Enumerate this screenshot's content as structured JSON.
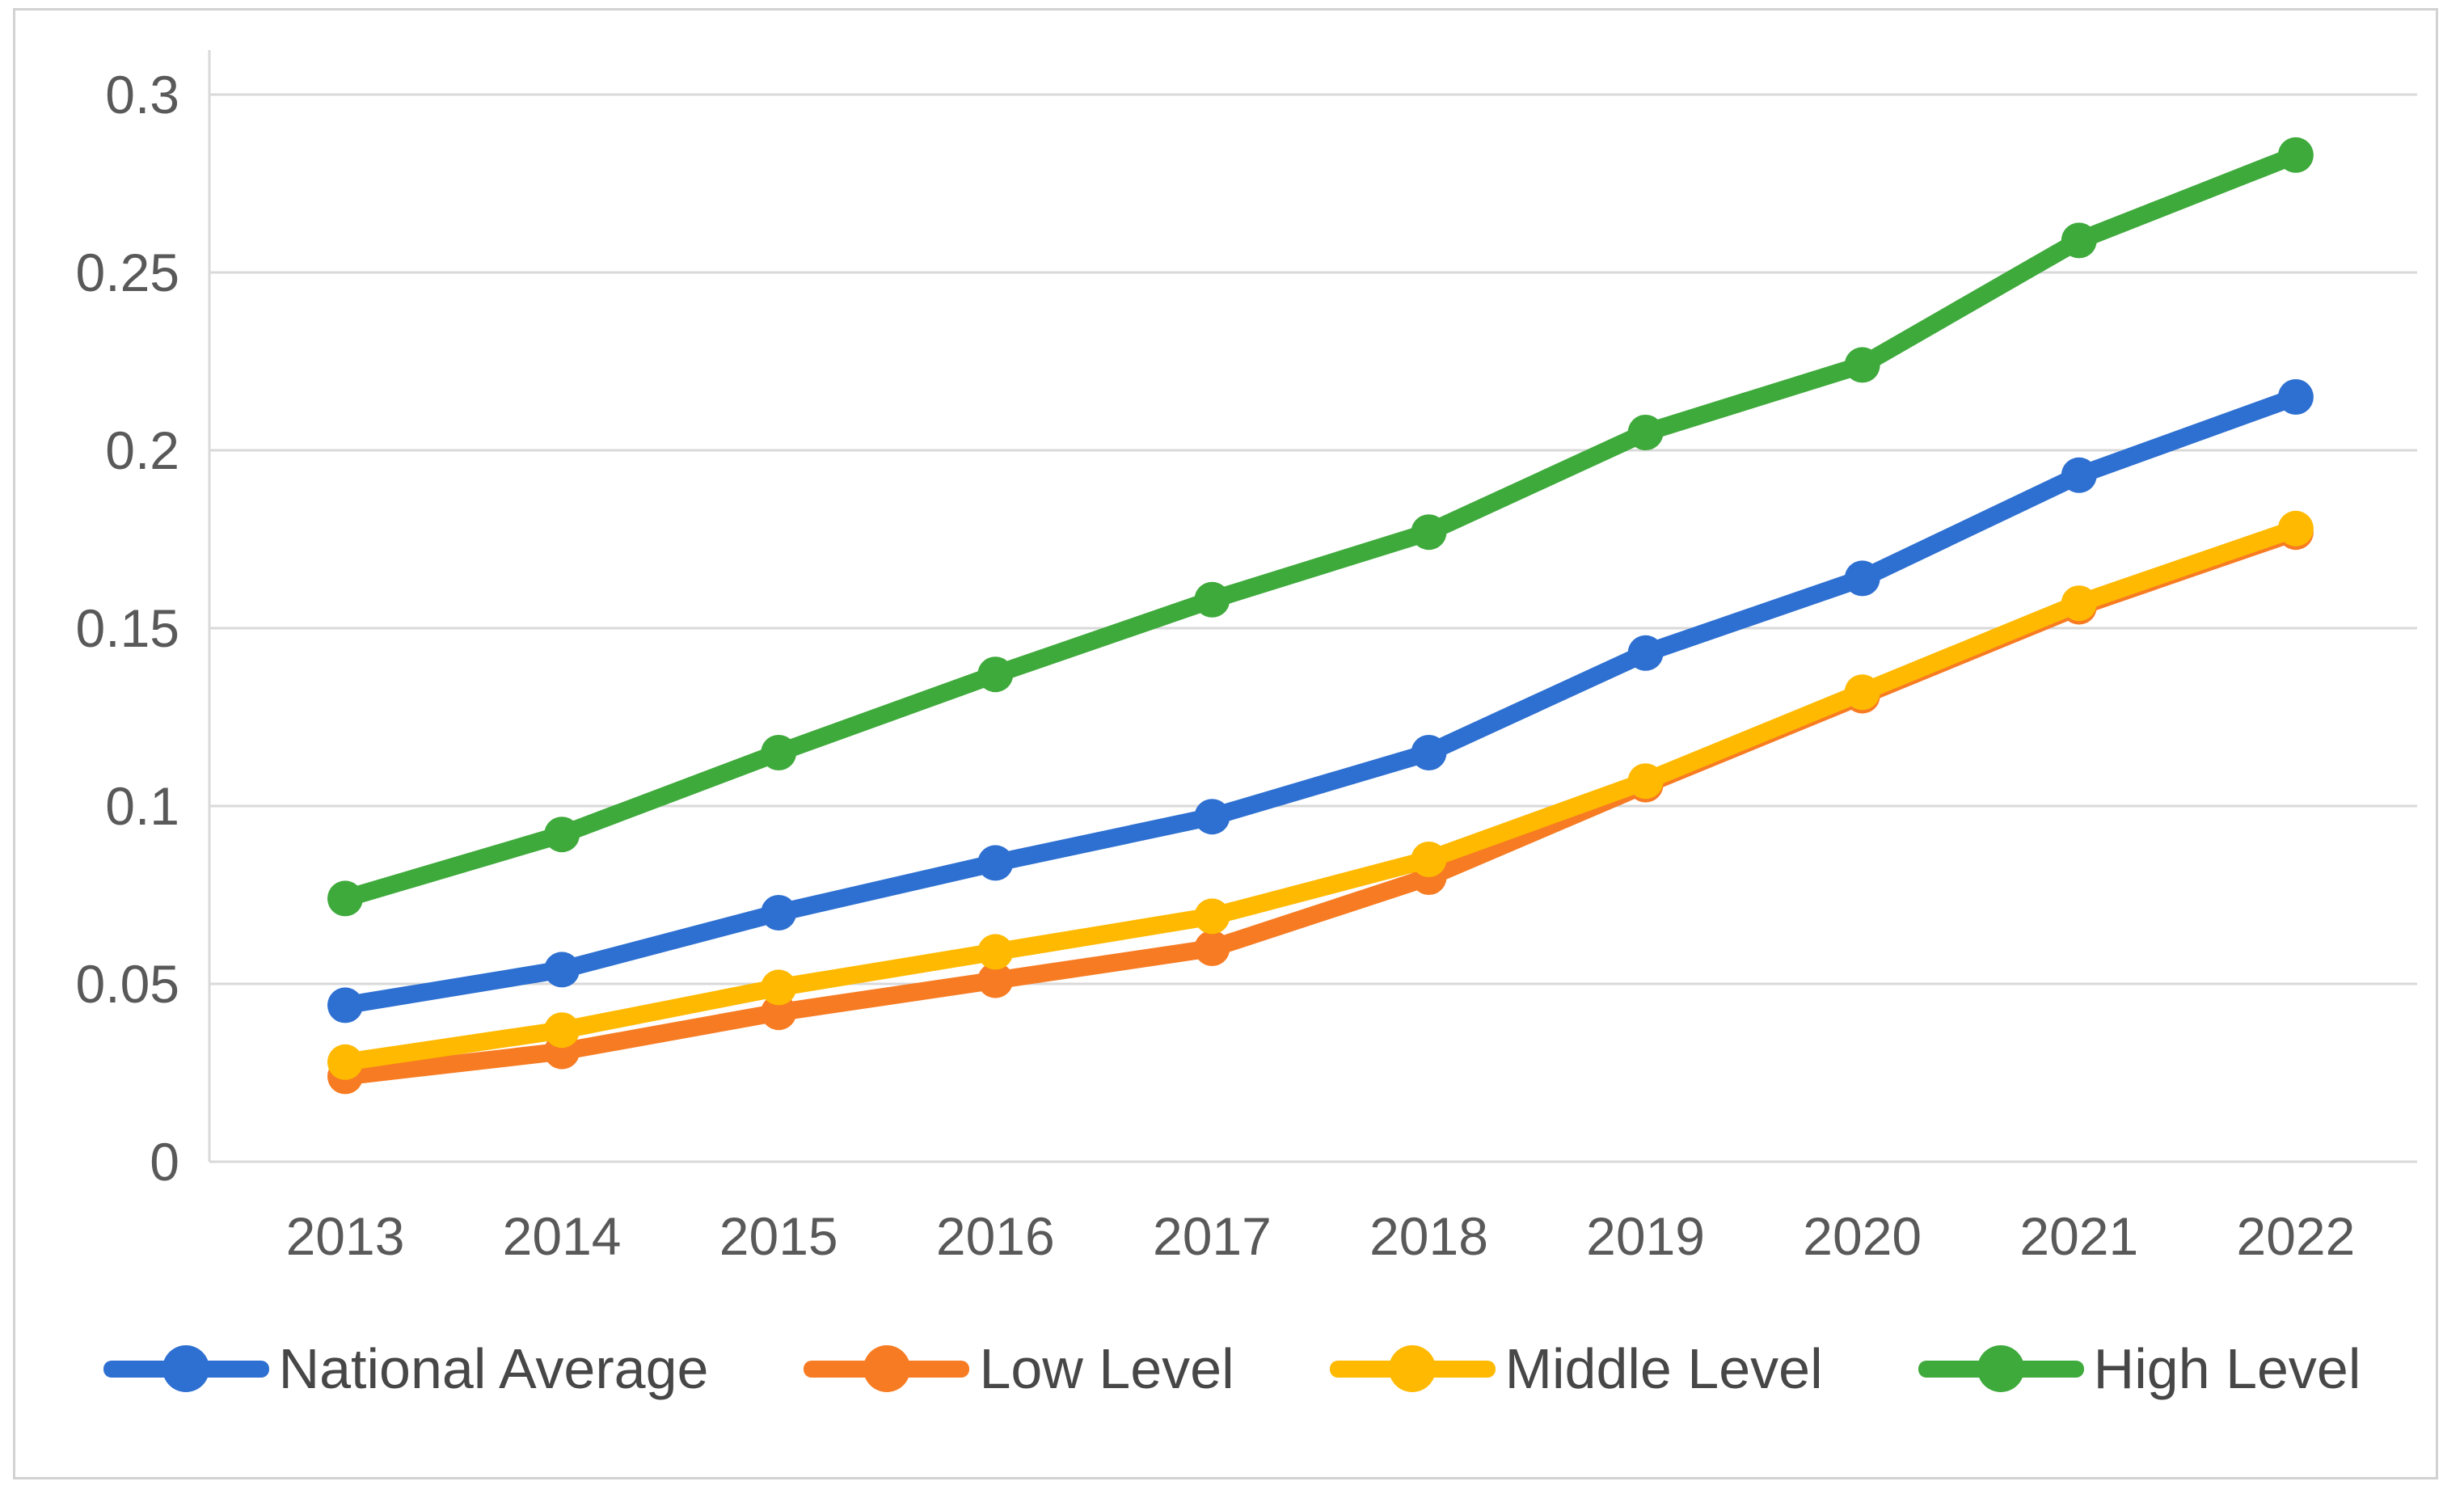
{
  "figure": {
    "background": "#ffffff",
    "border_color": "#d2d2d2"
  },
  "chart_data": {
    "type": "line",
    "title": "",
    "xlabel": "",
    "ylabel": "",
    "x": [
      "2013",
      "2014",
      "2015",
      "2016",
      "2017",
      "2018",
      "2019",
      "2020",
      "2021",
      "2022"
    ],
    "series": [
      {
        "name": "National Average",
        "color": "#2e70d1",
        "values": [
          0.044,
          0.054,
          0.07,
          0.084,
          0.097,
          0.115,
          0.143,
          0.164,
          0.193,
          0.215
        ]
      },
      {
        "name": "Low Level",
        "color": "#f77b22",
        "values": [
          0.024,
          0.031,
          0.042,
          0.051,
          0.06,
          0.08,
          0.106,
          0.131,
          0.156,
          0.177
        ]
      },
      {
        "name": "Middle Level",
        "color": "#ffb900",
        "values": [
          0.028,
          0.037,
          0.049,
          0.059,
          0.069,
          0.085,
          0.107,
          0.132,
          0.157,
          0.178
        ]
      },
      {
        "name": "High Level",
        "color": "#3faa3c",
        "values": [
          0.074,
          0.092,
          0.115,
          0.137,
          0.158,
          0.177,
          0.205,
          0.224,
          0.259,
          0.283
        ]
      }
    ],
    "ylim": [
      0,
      0.3
    ],
    "yticks": [
      0,
      0.05,
      0.1,
      0.15,
      0.2,
      0.25,
      0.3
    ],
    "ytick_labels": [
      "0",
      "0.05",
      "0.1",
      "0.15",
      "0.2",
      "0.25",
      "0.3"
    ],
    "grid": true,
    "gridline_color": "#d9d9d9",
    "axis_line_color": "#d9d9d9",
    "tick_label_color": "#595959",
    "legend_position": "bottom",
    "marker": "circle"
  }
}
